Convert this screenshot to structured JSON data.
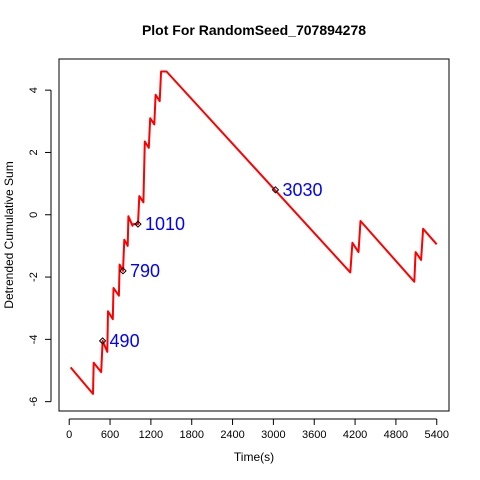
{
  "chart_data": {
    "type": "line",
    "title": "Plot For RandomSeed_707894278",
    "xlabel": "Time(s)",
    "ylabel": "Detrended Cumulative Sum",
    "xlim": [
      -150,
      5580
    ],
    "ylim": [
      -6.3,
      5.0
    ],
    "x_ticks": [
      0,
      600,
      1200,
      1800,
      2400,
      3000,
      3600,
      4200,
      4800,
      5400
    ],
    "y_ticks": [
      -6,
      -4,
      -2,
      0,
      2,
      4
    ],
    "grid": false,
    "line_color": "#ff0000",
    "annotation_color": "#0000ff",
    "series": [
      {
        "x": [
          20,
          350,
          360,
          470,
          490,
          560,
          570,
          640,
          650,
          730,
          740,
          790,
          810,
          860,
          870,
          930,
          940,
          1010,
          1030,
          1090,
          1110,
          1170,
          1190,
          1250,
          1270,
          1330,
          1350,
          1410,
          1430,
          4130,
          4160,
          4250,
          4280,
          5070,
          5090,
          5170,
          5200,
          5400
        ],
        "y": [
          -4.9,
          -5.75,
          -4.75,
          -5.05,
          -4.05,
          -4.4,
          -3.1,
          -3.35,
          -2.35,
          -2.6,
          -1.6,
          -1.8,
          -0.8,
          -1.0,
          -0.05,
          -0.35,
          -0.3,
          -0.3,
          0.6,
          0.4,
          2.35,
          2.15,
          3.1,
          2.9,
          3.85,
          3.65,
          4.6,
          4.6,
          4.6,
          -1.85,
          -0.9,
          -1.2,
          -0.2,
          -2.15,
          -1.2,
          -1.45,
          -0.45,
          -0.95
        ]
      }
    ],
    "annotations": [
      {
        "label": "490",
        "x": 490,
        "y": -4.05
      },
      {
        "label": "790",
        "x": 790,
        "y": -1.8
      },
      {
        "label": "1010",
        "x": 1010,
        "y": -0.3
      },
      {
        "label": "3030",
        "x": 3030,
        "y": 0.8
      }
    ]
  }
}
